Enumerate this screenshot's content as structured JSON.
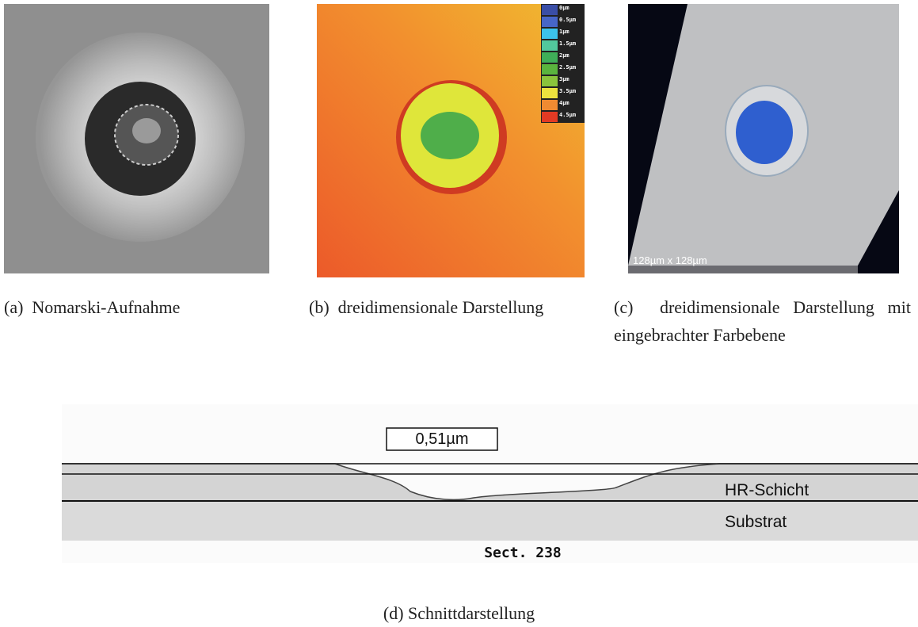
{
  "panels": [
    {
      "label": "(a)",
      "caption": "Nomarski-Aufnahme"
    },
    {
      "label": "(b)",
      "caption": "dreidimensionale Darstellung",
      "legend": [
        {
          "label": "0µm",
          "color": "#3a4ea6"
        },
        {
          "label": "0.5µm",
          "color": "#4766c8"
        },
        {
          "label": "1µm",
          "color": "#3cc2ea"
        },
        {
          "label": "1.5µm",
          "color": "#52c89c"
        },
        {
          "label": "2µm",
          "color": "#3fae58"
        },
        {
          "label": "2.5µm",
          "color": "#5ab43e"
        },
        {
          "label": "3µm",
          "color": "#8ac43c"
        },
        {
          "label": "3.5µm",
          "color": "#ece23e"
        },
        {
          "label": "4µm",
          "color": "#f08a32"
        },
        {
          "label": "4.5µm",
          "color": "#e23a24"
        }
      ]
    },
    {
      "label": "(c)",
      "caption": "dreidimensionale Darstellung mit eingebrachter Farbebene",
      "scale": "128µm x 128µm"
    },
    {
      "label": "(d)",
      "caption": "Schnittdarstellung",
      "measure": "0,51µm",
      "layer": "HR-Schicht",
      "substrate": "Substrat",
      "section": "Sect. 238"
    }
  ]
}
